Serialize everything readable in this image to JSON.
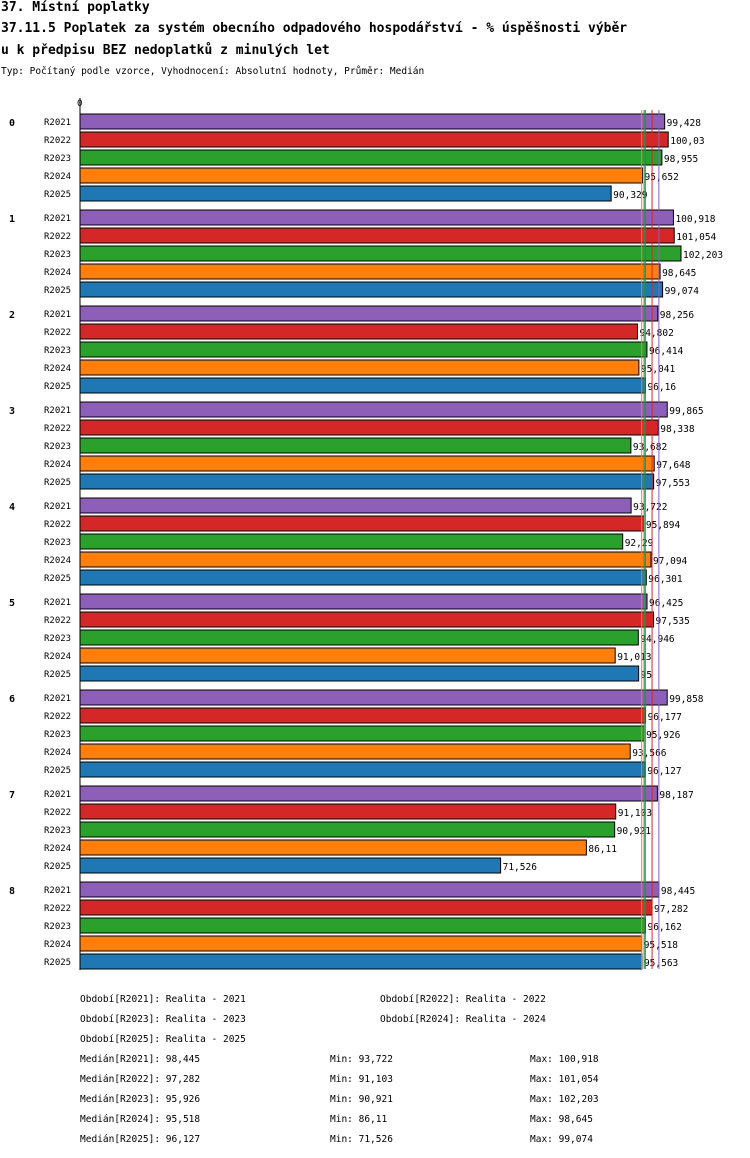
{
  "title": {
    "line1": "37. Místní poplatky",
    "line2": "37.11.5 Poplatek za systém obecního odpadového hospodářství  - % úspěšnosti výběr",
    "line3": "u k předpisu BEZ nedoplatků z minulých let",
    "subtitle": "Typ: Počítaný podle vzorce, Vyhodnocení: Absolutní hodnoty, Průměr: Medián"
  },
  "chart_data": {
    "type": "bar",
    "orientation": "horizontal",
    "axis_zero_label": "0",
    "xlim": [
      0,
      102.203
    ],
    "groups": [
      "0",
      "1",
      "2",
      "3",
      "4",
      "5",
      "6",
      "7",
      "8"
    ],
    "series": [
      {
        "name": "R2021",
        "color": "#8e5fb8",
        "labels": [
          "99,428",
          "100,918",
          "98,256",
          "99,865",
          "93,722",
          "96,425",
          "99,858",
          "98,187",
          "98,445"
        ],
        "values": [
          99.428,
          100.918,
          98.256,
          99.865,
          93.722,
          96.425,
          99.858,
          98.187,
          98.445
        ]
      },
      {
        "name": "R2022",
        "color": "#d62728",
        "labels": [
          "100,03",
          "101,054",
          "94,802",
          "98,338",
          "95,894",
          "97,535",
          "96,177",
          "91,103",
          "97,282"
        ],
        "values": [
          100.03,
          101.054,
          94.802,
          98.338,
          95.894,
          97.535,
          96.177,
          91.103,
          97.282
        ]
      },
      {
        "name": "R2023",
        "color": "#2ca02c",
        "labels": [
          "98,955",
          "102,203",
          "96,414",
          "93,682",
          "92,29",
          "94,946",
          "95,926",
          "90,921",
          "96,162"
        ],
        "values": [
          98.955,
          102.203,
          96.414,
          93.682,
          92.29,
          94.946,
          95.926,
          90.921,
          96.162
        ]
      },
      {
        "name": "R2024",
        "color": "#ff7f0e",
        "labels": [
          "95,652",
          "98,645",
          "95,041",
          "97,648",
          "97,094",
          "91,013",
          "93,566",
          "86,11",
          "95,518"
        ],
        "values": [
          95.652,
          98.645,
          95.041,
          97.648,
          97.094,
          91.013,
          93.566,
          86.11,
          95.518
        ]
      },
      {
        "name": "R2025",
        "color": "#1f77b4",
        "labels": [
          "90,329",
          "99,074",
          "96,16",
          "97,553",
          "96,301",
          "95",
          "96,127",
          "71,526",
          "95,563"
        ],
        "values": [
          90.329,
          99.074,
          96.16,
          97.553,
          96.301,
          95,
          96.127,
          71.526,
          95.563
        ]
      }
    ],
    "median_lines": [
      98.445,
      97.282,
      95.926,
      95.518,
      96.127
    ]
  },
  "legend": {
    "periods": [
      "Období[R2021]: Realita - 2021",
      "Období[R2022]: Realita - 2022",
      "Období[R2023]: Realita - 2023",
      "Období[R2024]: Realita - 2024",
      "Období[R2025]: Realita - 2025"
    ],
    "stats": [
      {
        "median": "Medián[R2021]: 98,445",
        "min": "Min: 93,722",
        "max": "Max: 100,918"
      },
      {
        "median": "Medián[R2022]: 97,282",
        "min": "Min: 91,103",
        "max": "Max: 101,054"
      },
      {
        "median": "Medián[R2023]: 95,926",
        "min": "Min: 90,921",
        "max": "Max: 102,203"
      },
      {
        "median": "Medián[R2024]: 95,518",
        "min": "Min: 86,11",
        "max": "Max: 98,645"
      },
      {
        "median": "Medián[R2025]: 96,127",
        "min": "Min: 71,526",
        "max": "Max: 99,074"
      }
    ]
  }
}
